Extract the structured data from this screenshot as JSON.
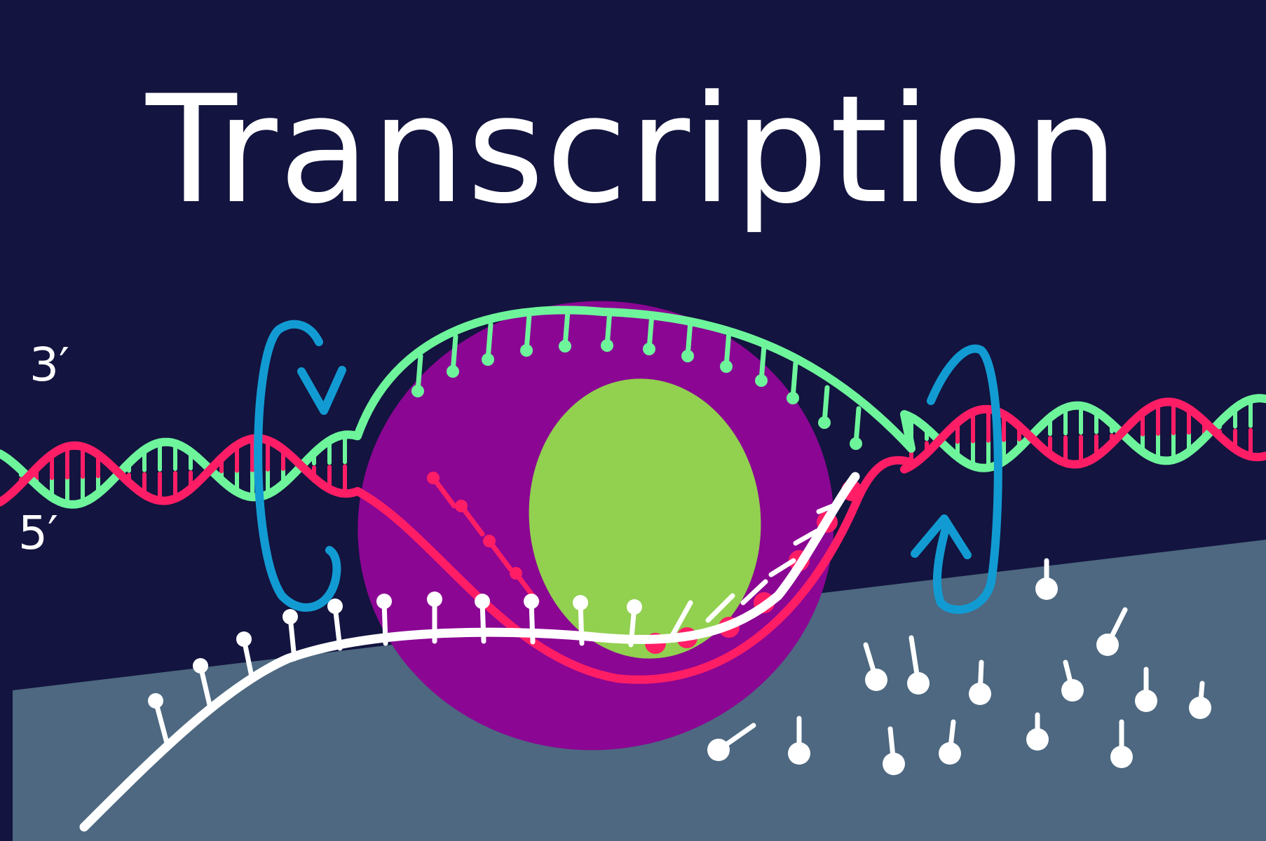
{
  "title": "Transcription",
  "labels": {
    "three_prime": "3′",
    "five_prime": "5′"
  },
  "colors": {
    "background": "#13143f",
    "ground": "#4d6880",
    "polymerase": "#8b0693",
    "core": "#92d050",
    "template_strand": "#ff1e66",
    "coding_strand": "#6ef59c",
    "mrna": "#ffffff",
    "rotation_arrows": "#129bd3"
  }
}
